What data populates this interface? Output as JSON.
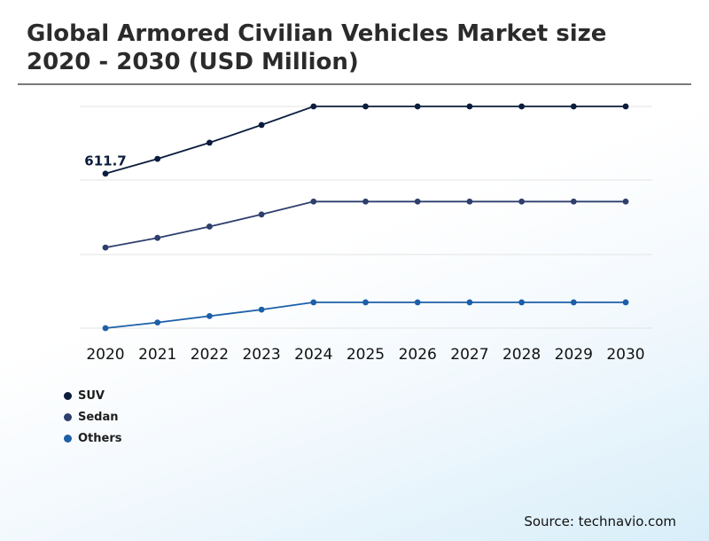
{
  "chart_data": {
    "type": "line",
    "title": "Global Armored Civilian Vehicles Market size 2020 - 2030 (USD Million)",
    "categories": [
      "2020",
      "2021",
      "2022",
      "2023",
      "2024",
      "2025",
      "2026",
      "2027",
      "2028",
      "2029",
      "2030"
    ],
    "series": [
      {
        "name": "SUV",
        "color": "#0b1c3d",
        "values": [
          611.7,
          630,
          650,
          672,
          695,
          695,
          695,
          695,
          695,
          695,
          695
        ]
      },
      {
        "name": "Sedan",
        "color": "#2e3f6e",
        "values": [
          520,
          532,
          546,
          561,
          577,
          577,
          577,
          577,
          577,
          577,
          577
        ]
      },
      {
        "name": "Others",
        "color": "#1c5fa8",
        "values": [
          420,
          427,
          435,
          443,
          452,
          452,
          452,
          452,
          452,
          452,
          452
        ]
      }
    ],
    "annotations": [
      {
        "series": "SUV",
        "index": 0,
        "text": "611.7"
      }
    ],
    "ylim": [
      420,
      695
    ],
    "grid": true,
    "legend_position": "bottom-left"
  },
  "source": "Source: technavio.com"
}
